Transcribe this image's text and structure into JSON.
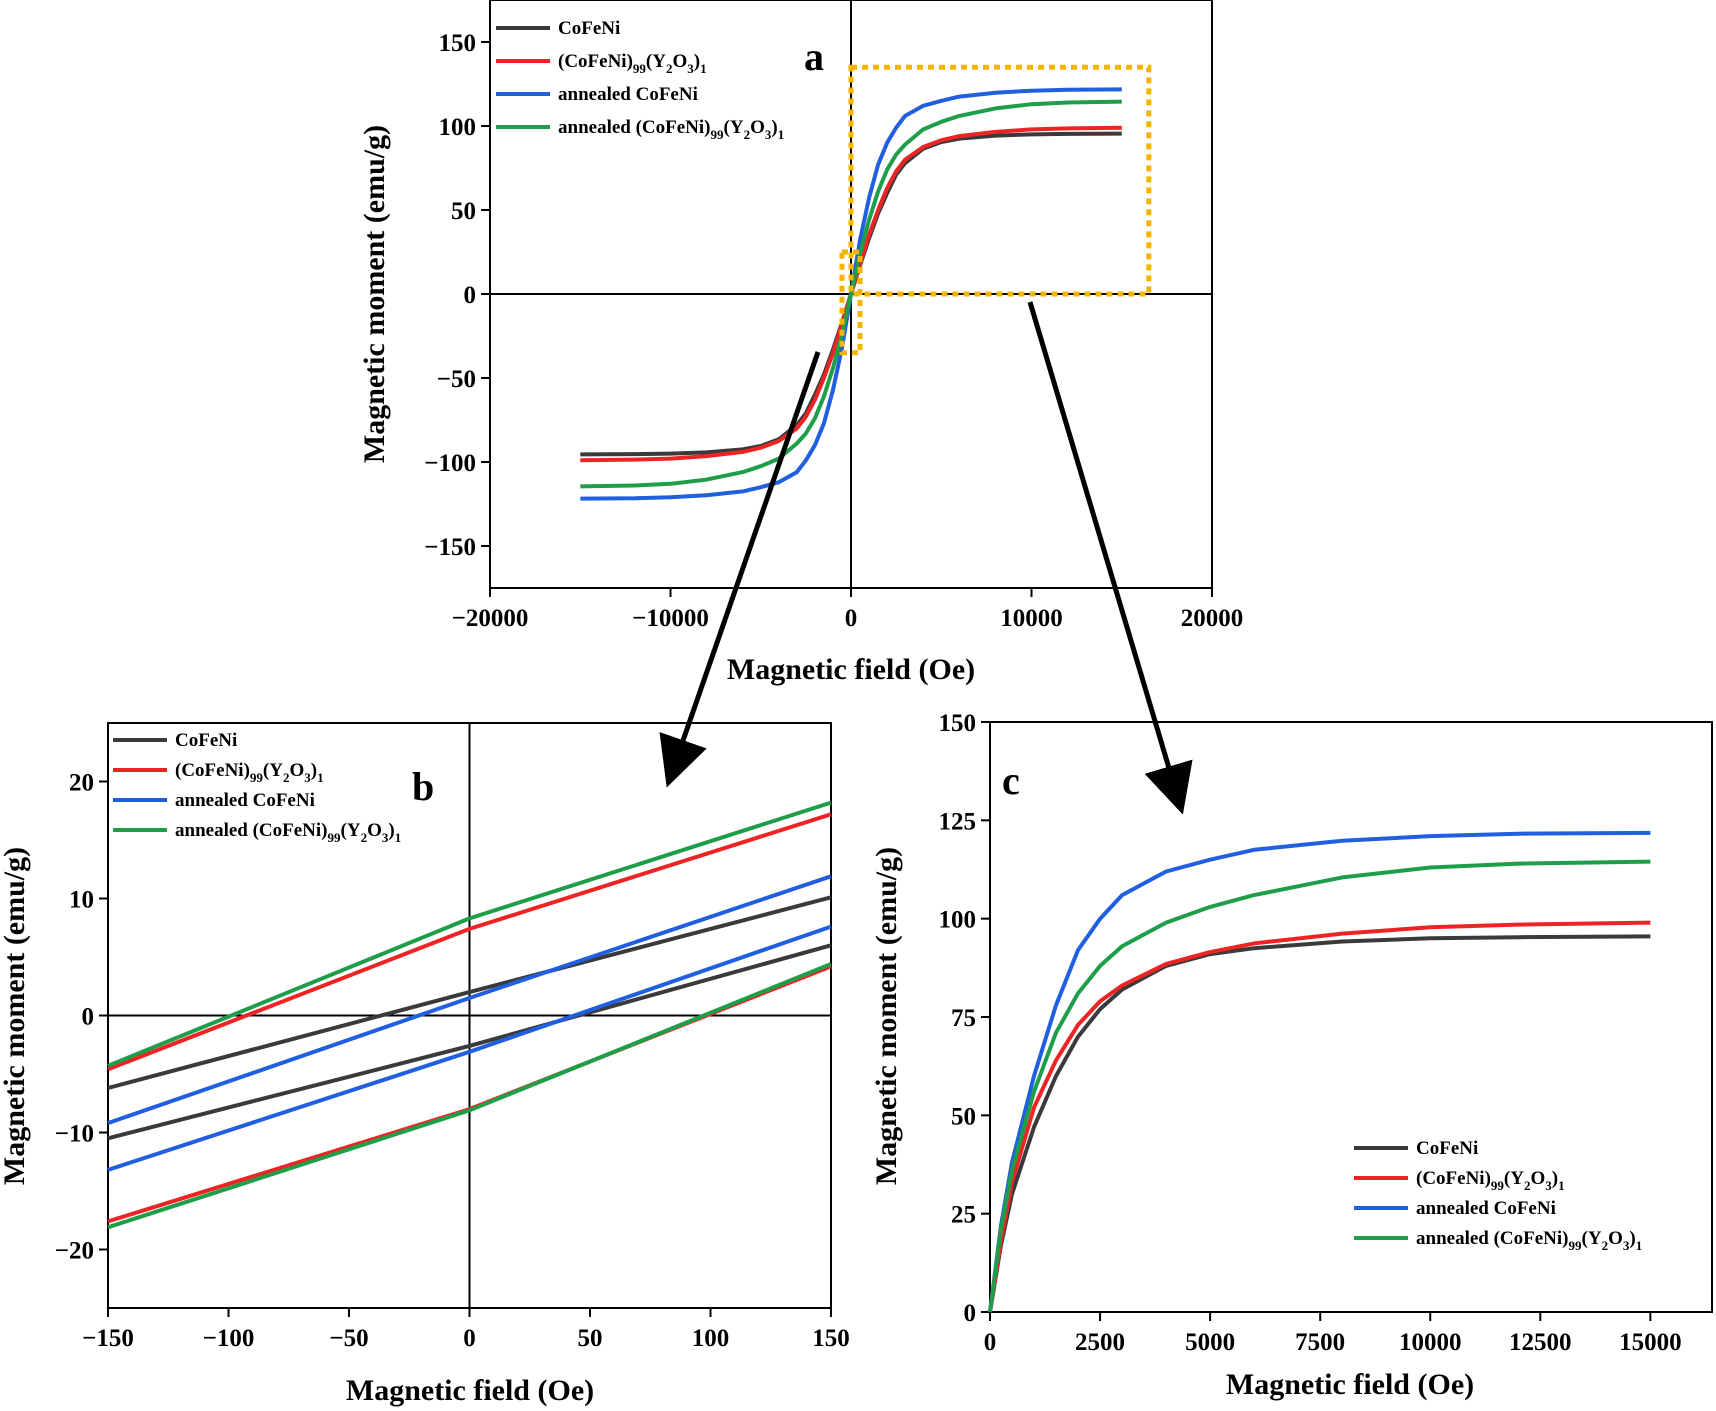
{
  "figure": {
    "title": "",
    "series_colors": {
      "CoFeNi": "#3a3a3a",
      "CoFeNi_Y2O3": "#ee2424",
      "annealed_CoFeNi": "#1f5fe0",
      "annealed_CoFeNi_Y2O3": "#1f9e4a"
    },
    "zoom_box_color": "#f5b400",
    "arrow_color": "#000000"
  },
  "chart_data": [
    {
      "panel": "a",
      "type": "line",
      "xlabel": "Magnetic field (Oe)",
      "ylabel": "Magnetic moment (emu/g)",
      "xlim": [
        -20000,
        20000
      ],
      "ylim": [
        -175,
        175
      ],
      "xticks": [
        -20000,
        -10000,
        0,
        10000,
        20000
      ],
      "yticks": [
        -150,
        -100,
        -50,
        0,
        50,
        100,
        150
      ],
      "xtick_labels": [
        "−20000",
        "−10000",
        "0",
        "10000",
        "20000"
      ],
      "ytick_labels": [
        "−150",
        "−100",
        "−50",
        "0",
        "50",
        "100",
        "150"
      ],
      "legend_position": "top-left",
      "zero_lines": true,
      "zoom_boxes": [
        {
          "x": [
            -500,
            500
          ],
          "y": [
            -35,
            25
          ]
        },
        {
          "x": [
            0,
            16500
          ],
          "y": [
            0,
            135
          ]
        }
      ],
      "series": [
        {
          "name": "CoFeNi",
          "key": "CoFeNi",
          "saturation": 95.5,
          "x": [
            -15000,
            -12000,
            -10000,
            -8000,
            -6000,
            -5000,
            -4000,
            -3000,
            -2500,
            -2000,
            -1500,
            -1000,
            -500,
            0,
            500,
            1000,
            1500,
            2000,
            2500,
            3000,
            4000,
            5000,
            6000,
            8000,
            10000,
            12000,
            15000
          ],
          "y": [
            -95.5,
            -95.3,
            -95,
            -94.3,
            -92.5,
            -90.5,
            -86.5,
            -78,
            -71,
            -60,
            -48,
            -33,
            -17,
            0,
            17,
            33,
            48,
            60,
            71,
            78,
            86.5,
            90.5,
            92.5,
            94.3,
            95,
            95.3,
            95.5
          ]
        },
        {
          "name": "(CoFeNi)99(Y2O3)1",
          "key": "CoFeNi_Y2O3",
          "saturation": 99,
          "x": [
            -15000,
            -12000,
            -10000,
            -8000,
            -6000,
            -5000,
            -4000,
            -3000,
            -2500,
            -2000,
            -1500,
            -1000,
            -500,
            0,
            500,
            1000,
            1500,
            2000,
            2500,
            3000,
            4000,
            5000,
            6000,
            8000,
            10000,
            12000,
            15000
          ],
          "y": [
            -99,
            -98.6,
            -98,
            -96.5,
            -94,
            -91.5,
            -87.5,
            -80,
            -73,
            -63,
            -50,
            -35,
            -18,
            0,
            18,
            35,
            50,
            63,
            73,
            80,
            87.5,
            91.5,
            94,
            96.5,
            98,
            98.6,
            99
          ]
        },
        {
          "name": "annealed CoFeNi",
          "key": "annealed_CoFeNi",
          "saturation": 121.8,
          "x": [
            -15000,
            -12000,
            -10000,
            -8000,
            -6000,
            -5000,
            -4000,
            -3000,
            -2500,
            -2000,
            -1500,
            -1000,
            -500,
            0,
            500,
            1000,
            1500,
            2000,
            2500,
            3000,
            4000,
            5000,
            6000,
            8000,
            10000,
            12000,
            15000
          ],
          "y": [
            -121.8,
            -121.6,
            -121,
            -119.8,
            -117.5,
            -115,
            -112,
            -106,
            -99,
            -90,
            -77,
            -57,
            -32,
            0,
            32,
            57,
            77,
            90,
            99,
            106,
            112,
            115,
            117.5,
            119.8,
            121,
            121.6,
            121.8
          ]
        },
        {
          "name": "annealed (CoFeNi)99(Y2O3)1",
          "key": "annealed_CoFeNi_Y2O3",
          "saturation": 114.5,
          "x": [
            -15000,
            -12000,
            -10000,
            -8000,
            -6000,
            -5000,
            -4000,
            -3000,
            -2500,
            -2000,
            -1500,
            -1000,
            -500,
            0,
            500,
            1000,
            1500,
            2000,
            2500,
            3000,
            4000,
            5000,
            6000,
            8000,
            10000,
            12000,
            15000
          ],
          "y": [
            -114.5,
            -114,
            -113,
            -110.5,
            -106,
            -102.5,
            -98,
            -89,
            -83,
            -74,
            -61,
            -44,
            -24,
            0,
            24,
            44,
            61,
            74,
            83,
            89,
            98,
            102.5,
            106,
            110.5,
            113,
            114,
            114.5
          ]
        }
      ]
    },
    {
      "panel": "b",
      "type": "line",
      "xlabel": "Magnetic field (Oe)",
      "ylabel": "Magnetic moment (emu/g)",
      "xlim": [
        -150,
        150
      ],
      "ylim": [
        -25,
        25
      ],
      "xticks": [
        -150,
        -100,
        -50,
        0,
        50,
        100,
        150
      ],
      "yticks": [
        -20,
        -10,
        0,
        10,
        20
      ],
      "xtick_labels": [
        "−150",
        "−100",
        "−50",
        "0",
        "50",
        "100",
        "150"
      ],
      "ytick_labels": [
        "−20",
        "−10",
        "0",
        "10",
        "20"
      ],
      "legend_position": "top-left",
      "zero_lines": true,
      "series": [
        {
          "name": "CoFeNi",
          "key": "CoFeNi",
          "upper": {
            "x": [
              -150,
              0,
              150
            ],
            "y": [
              -6.2,
              2.0,
              10.1
            ]
          },
          "lower": {
            "x": [
              -150,
              0,
              150
            ],
            "y": [
              -10.5,
              -2.6,
              6.0
            ]
          }
        },
        {
          "name": "(CoFeNi)99(Y2O3)1",
          "key": "CoFeNi_Y2O3",
          "upper": {
            "x": [
              -150,
              0,
              150
            ],
            "y": [
              -4.6,
              7.4,
              17.2
            ]
          },
          "lower": {
            "x": [
              -150,
              0,
              150
            ],
            "y": [
              -17.6,
              -8.0,
              4.2
            ]
          }
        },
        {
          "name": "annealed CoFeNi",
          "key": "annealed_CoFeNi",
          "upper": {
            "x": [
              -150,
              0,
              150
            ],
            "y": [
              -9.2,
              1.5,
              11.9
            ]
          },
          "lower": {
            "x": [
              -150,
              0,
              150
            ],
            "y": [
              -13.2,
              -3.1,
              7.6
            ]
          }
        },
        {
          "name": "annealed (CoFeNi)99(Y2O3)1",
          "key": "annealed_CoFeNi_Y2O3",
          "upper": {
            "x": [
              -150,
              0,
              150
            ],
            "y": [
              -4.3,
              8.3,
              18.2
            ]
          },
          "lower": {
            "x": [
              -150,
              0,
              150
            ],
            "y": [
              -18.1,
              -8.1,
              4.4
            ]
          }
        }
      ]
    },
    {
      "panel": "c",
      "type": "line",
      "xlabel": "Magnetic field (Oe)",
      "ylabel": "Magnetic moment (emu/g)",
      "xlim": [
        0,
        16400
      ],
      "ylim": [
        0,
        150
      ],
      "xticks": [
        0,
        2500,
        5000,
        7500,
        10000,
        12500,
        15000
      ],
      "yticks": [
        0,
        25,
        50,
        75,
        100,
        125,
        150
      ],
      "xtick_labels": [
        "0",
        "2500",
        "5000",
        "7500",
        "10000",
        "12500",
        "15000"
      ],
      "ytick_labels": [
        "0",
        "25",
        "50",
        "75",
        "100",
        "125",
        "150"
      ],
      "legend_position": "bottom-right",
      "series": [
        {
          "name": "CoFeNi",
          "key": "CoFeNi",
          "x": [
            0,
            250,
            500,
            1000,
            1500,
            2000,
            2500,
            3000,
            4000,
            5000,
            6000,
            8000,
            10000,
            12000,
            15000
          ],
          "y": [
            0,
            17,
            30,
            47,
            60,
            70,
            77,
            82,
            88,
            91,
            92.5,
            94.2,
            95,
            95.3,
            95.5
          ]
        },
        {
          "name": "(CoFeNi)99(Y2O3)1",
          "key": "CoFeNi_Y2O3",
          "x": [
            0,
            250,
            500,
            1000,
            1500,
            2000,
            2500,
            3000,
            4000,
            5000,
            6000,
            8000,
            10000,
            12000,
            15000
          ],
          "y": [
            0,
            18,
            33,
            52,
            64,
            73,
            79,
            83,
            88.5,
            91.5,
            93.7,
            96.2,
            97.8,
            98.5,
            99
          ]
        },
        {
          "name": "annealed CoFeNi",
          "key": "annealed_CoFeNi",
          "x": [
            0,
            250,
            500,
            1000,
            1500,
            2000,
            2500,
            3000,
            4000,
            5000,
            6000,
            8000,
            10000,
            12000,
            15000
          ],
          "y": [
            0,
            22,
            38,
            60,
            78,
            92,
            100,
            106,
            112,
            115,
            117.5,
            119.8,
            121,
            121.6,
            121.8
          ]
        },
        {
          "name": "annealed (CoFeNi)99(Y2O3)1",
          "key": "annealed_CoFeNi_Y2O3",
          "x": [
            0,
            250,
            500,
            1000,
            1500,
            2000,
            2500,
            3000,
            4000,
            5000,
            6000,
            8000,
            10000,
            12000,
            15000
          ],
          "y": [
            0,
            21,
            36,
            56,
            71,
            81,
            88,
            93,
            99,
            103,
            106,
            110.5,
            113,
            114,
            114.5
          ]
        }
      ]
    }
  ]
}
